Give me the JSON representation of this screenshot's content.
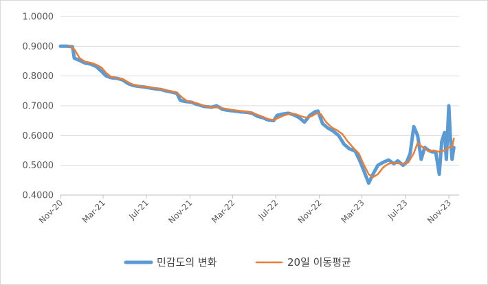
{
  "chart_data": {
    "type": "line",
    "title": "",
    "xlabel": "",
    "ylabel": "",
    "ylim": [
      0.4,
      1.0
    ],
    "yticks": [
      "0.4000",
      "0.5000",
      "0.6000",
      "0.7000",
      "0.8000",
      "0.9000",
      "1.0000"
    ],
    "ytick_values": [
      0.4,
      0.5,
      0.6,
      0.7,
      0.8,
      0.9,
      1.0
    ],
    "x_start": "2020-11-01",
    "x_end": "2023-11-30",
    "xticks": [
      "Nov-20",
      "Mar-21",
      "Jul-21",
      "Nov-21",
      "Mar-22",
      "Jul-22",
      "Nov-22",
      "Mar-23",
      "Jul-23",
      "Nov-23"
    ],
    "xtick_dates": [
      "2020-11-01",
      "2021-03-01",
      "2021-07-01",
      "2021-11-01",
      "2022-03-01",
      "2022-07-01",
      "2022-11-01",
      "2023-03-01",
      "2023-07-01",
      "2023-11-01"
    ],
    "legend_position": "bottom",
    "series": [
      {
        "name": "민감도의 변화",
        "color": "#5b9bd5",
        "points": [
          [
            "2020-11-01",
            0.9
          ],
          [
            "2020-11-20",
            0.9
          ],
          [
            "2020-12-05",
            0.898
          ],
          [
            "2020-12-10",
            0.86
          ],
          [
            "2020-12-25",
            0.852
          ],
          [
            "2021-01-10",
            0.843
          ],
          [
            "2021-01-25",
            0.84
          ],
          [
            "2021-02-10",
            0.832
          ],
          [
            "2021-02-25",
            0.815
          ],
          [
            "2021-03-10",
            0.8
          ],
          [
            "2021-03-25",
            0.794
          ],
          [
            "2021-04-10",
            0.792
          ],
          [
            "2021-04-25",
            0.787
          ],
          [
            "2021-05-10",
            0.775
          ],
          [
            "2021-05-25",
            0.768
          ],
          [
            "2021-06-10",
            0.765
          ],
          [
            "2021-06-25",
            0.763
          ],
          [
            "2021-07-10",
            0.76
          ],
          [
            "2021-07-25",
            0.757
          ],
          [
            "2021-08-10",
            0.755
          ],
          [
            "2021-08-25",
            0.75
          ],
          [
            "2021-09-10",
            0.746
          ],
          [
            "2021-09-25",
            0.742
          ],
          [
            "2021-10-05",
            0.718
          ],
          [
            "2021-10-20",
            0.714
          ],
          [
            "2021-11-05",
            0.712
          ],
          [
            "2021-11-20",
            0.705
          ],
          [
            "2021-12-10",
            0.698
          ],
          [
            "2022-01-01",
            0.695
          ],
          [
            "2022-01-15",
            0.7
          ],
          [
            "2022-02-01",
            0.688
          ],
          [
            "2022-02-15",
            0.685
          ],
          [
            "2022-03-01",
            0.683
          ],
          [
            "2022-03-20",
            0.68
          ],
          [
            "2022-04-10",
            0.678
          ],
          [
            "2022-04-25",
            0.675
          ],
          [
            "2022-05-10",
            0.665
          ],
          [
            "2022-05-25",
            0.66
          ],
          [
            "2022-06-10",
            0.652
          ],
          [
            "2022-06-25",
            0.65
          ],
          [
            "2022-07-05",
            0.668
          ],
          [
            "2022-07-20",
            0.672
          ],
          [
            "2022-08-05",
            0.675
          ],
          [
            "2022-08-20",
            0.67
          ],
          [
            "2022-09-05",
            0.66
          ],
          [
            "2022-09-20",
            0.645
          ],
          [
            "2022-10-05",
            0.668
          ],
          [
            "2022-10-20",
            0.68
          ],
          [
            "2022-10-28",
            0.682
          ],
          [
            "2022-11-10",
            0.64
          ],
          [
            "2022-11-25",
            0.625
          ],
          [
            "2022-12-10",
            0.615
          ],
          [
            "2022-12-25",
            0.6
          ],
          [
            "2023-01-10",
            0.57
          ],
          [
            "2023-01-25",
            0.555
          ],
          [
            "2023-02-10",
            0.548
          ],
          [
            "2023-02-25",
            0.51
          ],
          [
            "2023-03-10",
            0.47
          ],
          [
            "2023-03-20",
            0.44
          ],
          [
            "2023-04-01",
            0.47
          ],
          [
            "2023-04-15",
            0.5
          ],
          [
            "2023-04-30",
            0.51
          ],
          [
            "2023-05-15",
            0.518
          ],
          [
            "2023-05-30",
            0.505
          ],
          [
            "2023-06-10",
            0.515
          ],
          [
            "2023-06-25",
            0.5
          ],
          [
            "2023-07-05",
            0.51
          ],
          [
            "2023-07-15",
            0.54
          ],
          [
            "2023-07-25",
            0.63
          ],
          [
            "2023-08-05",
            0.6
          ],
          [
            "2023-08-15",
            0.52
          ],
          [
            "2023-08-25",
            0.56
          ],
          [
            "2023-09-05",
            0.55
          ],
          [
            "2023-09-15",
            0.545
          ],
          [
            "2023-09-25",
            0.545
          ],
          [
            "2023-10-05",
            0.47
          ],
          [
            "2023-10-12",
            0.58
          ],
          [
            "2023-10-20",
            0.61
          ],
          [
            "2023-10-25",
            0.52
          ],
          [
            "2023-11-01",
            0.7
          ],
          [
            "2023-11-05",
            0.6
          ],
          [
            "2023-11-10",
            0.52
          ],
          [
            "2023-11-15",
            0.56
          ]
        ]
      },
      {
        "name": "20일 이동평균",
        "color": "#ed7d31",
        "points": [
          [
            "2020-11-25",
            0.9
          ],
          [
            "2020-12-10",
            0.89
          ],
          [
            "2020-12-25",
            0.86
          ],
          [
            "2021-01-10",
            0.848
          ],
          [
            "2021-01-25",
            0.845
          ],
          [
            "2021-02-10",
            0.838
          ],
          [
            "2021-02-25",
            0.828
          ],
          [
            "2021-03-10",
            0.81
          ],
          [
            "2021-03-25",
            0.796
          ],
          [
            "2021-04-10",
            0.793
          ],
          [
            "2021-04-25",
            0.79
          ],
          [
            "2021-05-10",
            0.78
          ],
          [
            "2021-05-25",
            0.77
          ],
          [
            "2021-06-10",
            0.766
          ],
          [
            "2021-06-25",
            0.764
          ],
          [
            "2021-07-10",
            0.762
          ],
          [
            "2021-07-25",
            0.759
          ],
          [
            "2021-08-10",
            0.756
          ],
          [
            "2021-08-25",
            0.752
          ],
          [
            "2021-09-10",
            0.748
          ],
          [
            "2021-09-25",
            0.745
          ],
          [
            "2021-10-10",
            0.728
          ],
          [
            "2021-10-25",
            0.715
          ],
          [
            "2021-11-10",
            0.712
          ],
          [
            "2021-11-25",
            0.707
          ],
          [
            "2021-12-10",
            0.7
          ],
          [
            "2022-01-01",
            0.695
          ],
          [
            "2022-01-20",
            0.694
          ],
          [
            "2022-02-10",
            0.69
          ],
          [
            "2022-03-01",
            0.686
          ],
          [
            "2022-03-20",
            0.683
          ],
          [
            "2022-04-10",
            0.68
          ],
          [
            "2022-04-25",
            0.677
          ],
          [
            "2022-05-10",
            0.67
          ],
          [
            "2022-05-25",
            0.663
          ],
          [
            "2022-06-10",
            0.655
          ],
          [
            "2022-06-25",
            0.652
          ],
          [
            "2022-07-10",
            0.66
          ],
          [
            "2022-07-25",
            0.668
          ],
          [
            "2022-08-10",
            0.673
          ],
          [
            "2022-08-25",
            0.672
          ],
          [
            "2022-09-10",
            0.665
          ],
          [
            "2022-09-25",
            0.66
          ],
          [
            "2022-10-10",
            0.665
          ],
          [
            "2022-10-25",
            0.675
          ],
          [
            "2022-11-05",
            0.672
          ],
          [
            "2022-11-20",
            0.645
          ],
          [
            "2022-12-05",
            0.628
          ],
          [
            "2022-12-20",
            0.618
          ],
          [
            "2023-01-05",
            0.605
          ],
          [
            "2023-01-20",
            0.58
          ],
          [
            "2023-02-05",
            0.558
          ],
          [
            "2023-02-20",
            0.54
          ],
          [
            "2023-03-05",
            0.505
          ],
          [
            "2023-03-20",
            0.47
          ],
          [
            "2023-04-01",
            0.46
          ],
          [
            "2023-04-15",
            0.47
          ],
          [
            "2023-04-30",
            0.493
          ],
          [
            "2023-05-15",
            0.505
          ],
          [
            "2023-05-30",
            0.508
          ],
          [
            "2023-06-15",
            0.506
          ],
          [
            "2023-06-30",
            0.505
          ],
          [
            "2023-07-10",
            0.51
          ],
          [
            "2023-07-25",
            0.54
          ],
          [
            "2023-08-05",
            0.575
          ],
          [
            "2023-08-20",
            0.56
          ],
          [
            "2023-09-05",
            0.548
          ],
          [
            "2023-09-20",
            0.55
          ],
          [
            "2023-10-05",
            0.545
          ],
          [
            "2023-10-20",
            0.55
          ],
          [
            "2023-11-01",
            0.56
          ],
          [
            "2023-11-10",
            0.56
          ],
          [
            "2023-11-15",
            0.59
          ]
        ]
      }
    ]
  }
}
